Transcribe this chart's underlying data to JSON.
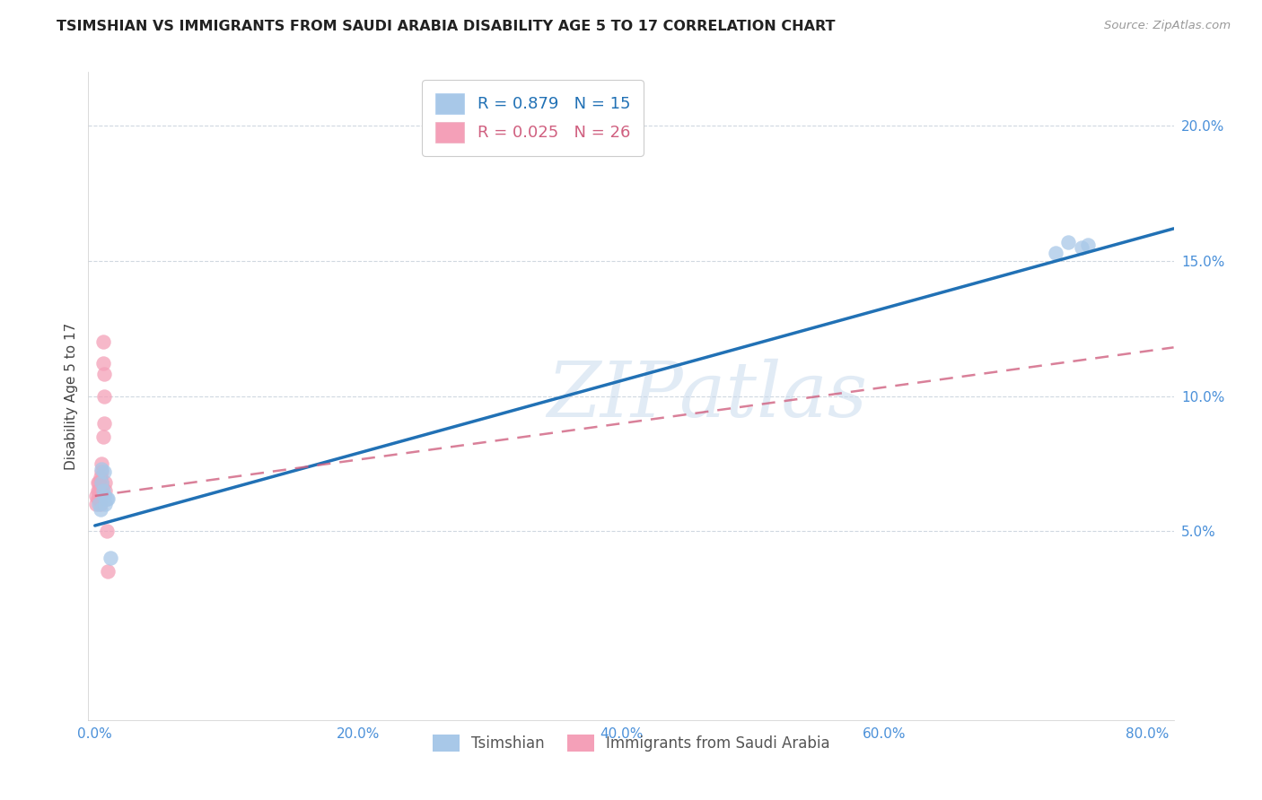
{
  "title": "TSIMSHIAN VS IMMIGRANTS FROM SAUDI ARABIA DISABILITY AGE 5 TO 17 CORRELATION CHART",
  "source": "Source: ZipAtlas.com",
  "ylabel": "Disability Age 5 to 17",
  "xlim": [
    -0.005,
    0.82
  ],
  "ylim": [
    -0.02,
    0.22
  ],
  "xticks": [
    0.0,
    0.2,
    0.4,
    0.6,
    0.8
  ],
  "yticks": [
    0.05,
    0.1,
    0.15,
    0.2
  ],
  "xticklabels": [
    "0.0%",
    "20.0%",
    "40.0%",
    "60.0%",
    "80.0%"
  ],
  "yticklabels": [
    "5.0%",
    "10.0%",
    "15.0%",
    "20.0%"
  ],
  "blue_R": 0.879,
  "blue_N": 15,
  "pink_R": 0.025,
  "pink_N": 26,
  "blue_scatter_x": [
    0.003,
    0.004,
    0.005,
    0.005,
    0.006,
    0.007,
    0.007,
    0.008,
    0.009,
    0.01,
    0.012,
    0.73,
    0.74,
    0.75,
    0.755
  ],
  "blue_scatter_y": [
    0.06,
    0.058,
    0.068,
    0.073,
    0.065,
    0.063,
    0.072,
    0.06,
    0.062,
    0.062,
    0.04,
    0.153,
    0.157,
    0.155,
    0.156
  ],
  "pink_scatter_x": [
    0.001,
    0.001,
    0.002,
    0.002,
    0.002,
    0.003,
    0.003,
    0.003,
    0.004,
    0.004,
    0.004,
    0.004,
    0.005,
    0.005,
    0.005,
    0.005,
    0.006,
    0.006,
    0.006,
    0.007,
    0.007,
    0.007,
    0.008,
    0.008,
    0.009,
    0.01
  ],
  "pink_scatter_y": [
    0.063,
    0.06,
    0.068,
    0.065,
    0.062,
    0.068,
    0.065,
    0.062,
    0.07,
    0.065,
    0.063,
    0.06,
    0.075,
    0.072,
    0.068,
    0.065,
    0.12,
    0.112,
    0.085,
    0.108,
    0.1,
    0.09,
    0.068,
    0.065,
    0.05,
    0.035
  ],
  "blue_line_x": [
    0.0,
    0.82
  ],
  "blue_line_y": [
    0.052,
    0.162
  ],
  "pink_line_x": [
    0.0,
    0.82
  ],
  "pink_line_y": [
    0.063,
    0.118
  ],
  "blue_color": "#a8c8e8",
  "pink_color": "#f4a0b8",
  "blue_line_color": "#2171b5",
  "pink_line_color": "#d06080",
  "watermark_text": "ZIPatlas",
  "legend_top_label1": "R = 0.879   N = 15",
  "legend_top_label2": "R = 0.025   N = 26",
  "legend_bot_label1": "Tsimshian",
  "legend_bot_label2": "Immigrants from Saudi Arabia",
  "background_color": "#ffffff",
  "grid_color": "#d0d8e0"
}
